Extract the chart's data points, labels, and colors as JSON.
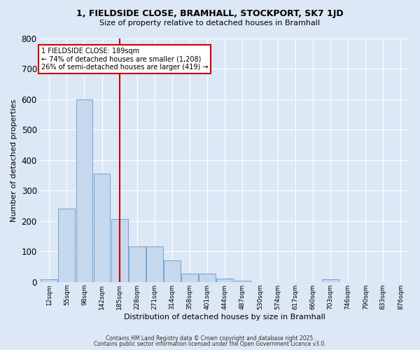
{
  "title": "1, FIELDSIDE CLOSE, BRAMHALL, STOCKPORT, SK7 1JD",
  "subtitle": "Size of property relative to detached houses in Bramhall",
  "xlabel": "Distribution of detached houses by size in Bramhall",
  "ylabel": "Number of detached properties",
  "bar_color": "#c5d8ed",
  "bar_edge_color": "#6699cc",
  "background_color": "#dce8f5",
  "grid_color": "#ffffff",
  "categories": [
    "12sqm",
    "55sqm",
    "98sqm",
    "142sqm",
    "185sqm",
    "228sqm",
    "271sqm",
    "314sqm",
    "358sqm",
    "401sqm",
    "444sqm",
    "487sqm",
    "530sqm",
    "574sqm",
    "617sqm",
    "660sqm",
    "703sqm",
    "746sqm",
    "790sqm",
    "833sqm",
    "876sqm"
  ],
  "values": [
    8,
    240,
    600,
    355,
    207,
    117,
    117,
    70,
    28,
    28,
    12,
    5,
    0,
    0,
    0,
    0,
    8,
    0,
    0,
    0,
    0
  ],
  "red_line_index": 4,
  "annotation_text": "1 FIELDSIDE CLOSE: 189sqm\n← 74% of detached houses are smaller (1,208)\n26% of semi-detached houses are larger (419) →",
  "annotation_box_color": "#ffffff",
  "annotation_border_color": "#cc0000",
  "red_line_color": "#cc0000",
  "ylim": [
    0,
    800
  ],
  "yticks": [
    0,
    100,
    200,
    300,
    400,
    500,
    600,
    700,
    800
  ],
  "footer_line1": "Contains HM Land Registry data © Crown copyright and database right 2025.",
  "footer_line2": "Contains public sector information licensed under the Open Government Licence v3.0."
}
